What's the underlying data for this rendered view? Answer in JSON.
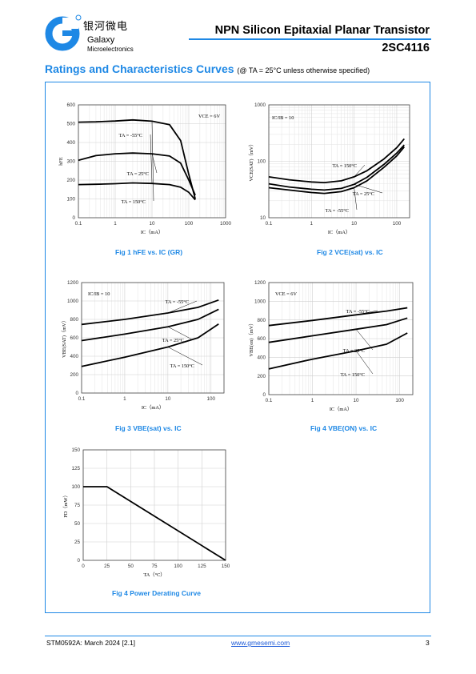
{
  "header": {
    "logo_cn": "银河微电",
    "logo_name": "Galaxy",
    "logo_sub": "Microelectronics",
    "title": "NPN Silicon Epitaxial Planar Transistor",
    "part": "2SC4116"
  },
  "section": {
    "title": "Ratings and Characteristics Curves",
    "condition": "(@ TA = 25°C unless otherwise specified)"
  },
  "colors": {
    "accent": "#1e88e5",
    "link": "#1e5bd8"
  },
  "figures": [
    {
      "caption": "Fig 1    hFE vs. IC (GR)"
    },
    {
      "caption": "Fig 2    VCE(sat) vs. IC"
    },
    {
      "caption": "Fig 3    VBE(sat) vs. IC"
    },
    {
      "caption": "Fig 4    VBE(ON) vs. IC"
    },
    {
      "caption": "Fig 4    Power Derating Curve"
    }
  ],
  "chart_data": [
    {
      "type": "line",
      "xscale": "log",
      "yscale": "linear",
      "xlim": [
        0.1,
        1000
      ],
      "ylim": [
        0,
        600
      ],
      "xticks": [
        0.1,
        1,
        10,
        100,
        1000
      ],
      "xticklabels": [
        "0.1",
        "1",
        "10",
        "100",
        "1000"
      ],
      "yticks": [
        0,
        100,
        200,
        300,
        400,
        500,
        600
      ],
      "yticklabels": [
        "0",
        "100",
        "200",
        "300",
        "400",
        "500",
        "600"
      ],
      "xlabel": "IC（mA）",
      "ylabel": "hFE",
      "note": "VCE = 6V",
      "series": [
        {
          "name": "TA = 150°C",
          "x": [
            0.1,
            0.3,
            1,
            3,
            10,
            30,
            60,
            100,
            150
          ],
          "y": [
            508,
            510,
            514,
            520,
            513,
            495,
            410,
            230,
            100
          ]
        },
        {
          "name": "TA = 25°C",
          "x": [
            0.1,
            0.3,
            1,
            3,
            10,
            30,
            60,
            100,
            150
          ],
          "y": [
            305,
            330,
            340,
            344,
            340,
            328,
            290,
            200,
            120
          ]
        },
        {
          "name": "TA = -55°C",
          "x": [
            0.1,
            0.3,
            1,
            3,
            10,
            30,
            60,
            100,
            150
          ],
          "y": [
            176,
            178,
            181,
            185,
            182,
            176,
            162,
            135,
            95
          ]
        }
      ]
    },
    {
      "type": "line",
      "xscale": "log",
      "yscale": "log",
      "xlim": [
        0.1,
        200
      ],
      "ylim": [
        10,
        1000
      ],
      "xticks": [
        0.1,
        1,
        10,
        100
      ],
      "xticklabels": [
        "0.1",
        "1",
        "10",
        "100"
      ],
      "yticks": [
        10,
        100,
        1000
      ],
      "yticklabels": [
        "10",
        "100",
        "1000"
      ],
      "xlabel": "IC（mA）",
      "ylabel": "VCE(SAT)（mV）",
      "note": "IC/IB = 10",
      "series": [
        {
          "name": "TA = 150°C",
          "x": [
            0.1,
            0.3,
            1,
            2,
            5,
            10,
            20,
            50,
            100,
            150
          ],
          "y": [
            53,
            47,
            43,
            42,
            45,
            53,
            68,
            110,
            175,
            250
          ]
        },
        {
          "name": "TA = 25°C",
          "x": [
            0.1,
            0.3,
            1,
            2,
            5,
            10,
            20,
            50,
            100,
            150
          ],
          "y": [
            40,
            35,
            32,
            31,
            33,
            39,
            52,
            88,
            140,
            195
          ]
        },
        {
          "name": "TA = -55°C",
          "x": [
            0.1,
            0.3,
            1,
            2,
            5,
            10,
            20,
            50,
            100,
            150
          ],
          "y": [
            34,
            31,
            28,
            27,
            29,
            34,
            45,
            78,
            125,
            180
          ]
        }
      ]
    },
    {
      "type": "line",
      "xscale": "log",
      "yscale": "linear",
      "xlim": [
        0.1,
        200
      ],
      "ylim": [
        0,
        1200
      ],
      "xticks": [
        0.1,
        1,
        10,
        100
      ],
      "xticklabels": [
        "0.1",
        "1",
        "10",
        "100"
      ],
      "yticks": [
        0,
        200,
        400,
        600,
        800,
        1000,
        1200
      ],
      "yticklabels": [
        "0",
        "200",
        "400",
        "600",
        "800",
        "1000",
        "1200"
      ],
      "xlabel": "IC（mA）",
      "ylabel": "VBE(SAT)（mV）",
      "note": "IC/IB = 10",
      "series": [
        {
          "name": "TA = -55°C",
          "x": [
            0.1,
            1,
            10,
            50,
            150
          ],
          "y": [
            745,
            800,
            870,
            930,
            1010
          ]
        },
        {
          "name": "TA = 25°C",
          "x": [
            0.1,
            1,
            10,
            50,
            150
          ],
          "y": [
            570,
            640,
            720,
            800,
            910
          ]
        },
        {
          "name": "TA = 150°C",
          "x": [
            0.1,
            1,
            10,
            50,
            150
          ],
          "y": [
            290,
            390,
            500,
            600,
            750
          ]
        }
      ]
    },
    {
      "type": "line",
      "xscale": "log",
      "yscale": "linear",
      "xlim": [
        0.1,
        200
      ],
      "ylim": [
        0,
        1200
      ],
      "xticks": [
        0.1,
        1,
        10,
        100
      ],
      "xticklabels": [
        "0.1",
        "1",
        "10",
        "100"
      ],
      "yticks": [
        0,
        200,
        400,
        600,
        800,
        1000,
        1200
      ],
      "yticklabels": [
        "0",
        "200",
        "400",
        "600",
        "800",
        "1000",
        "1200"
      ],
      "xlabel": "IC（mA）",
      "ylabel": "VBE(on)（mV）",
      "note": "VCE = 6V",
      "series": [
        {
          "name": "TA = -55°C",
          "x": [
            0.1,
            1,
            10,
            50,
            150
          ],
          "y": [
            740,
            795,
            855,
            895,
            930
          ]
        },
        {
          "name": "TA = 25°C",
          "x": [
            0.1,
            1,
            10,
            50,
            150
          ],
          "y": [
            560,
            630,
            700,
            750,
            820
          ]
        },
        {
          "name": "TA = 150°C",
          "x": [
            0.1,
            1,
            10,
            50,
            150
          ],
          "y": [
            275,
            380,
            470,
            540,
            660
          ]
        }
      ]
    },
    {
      "type": "line",
      "xscale": "linear",
      "yscale": "linear",
      "xlim": [
        0,
        150
      ],
      "ylim": [
        0,
        150
      ],
      "xticks": [
        0,
        25,
        50,
        75,
        100,
        125,
        150
      ],
      "xticklabels": [
        "0",
        "25",
        "50",
        "75",
        "100",
        "125",
        "150"
      ],
      "yticks": [
        0,
        25,
        50,
        75,
        100,
        125,
        150
      ],
      "yticklabels": [
        "0",
        "25",
        "50",
        "75",
        "100",
        "125",
        "150"
      ],
      "xlabel": "TA（°C）",
      "ylabel": "PD（mW）",
      "series": [
        {
          "x": [
            0,
            25,
            150
          ],
          "y": [
            100,
            100,
            0
          ]
        }
      ]
    }
  ],
  "footer": {
    "left": "STM0592A: March 2024 [2.1]",
    "center": "www.gmesemi.com",
    "right": "3"
  }
}
